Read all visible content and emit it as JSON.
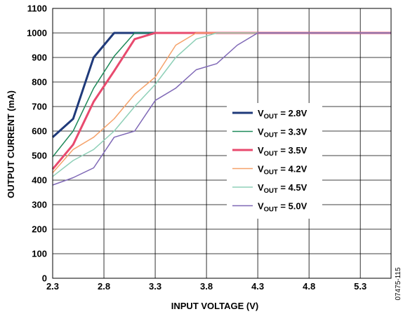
{
  "chart_data": {
    "type": "line",
    "xlabel": "INPUT VOLTAGE (V)",
    "ylabel": "OUTPUT CURRENT (mA)",
    "xlim": [
      2.3,
      5.6
    ],
    "ylim": [
      0,
      1100
    ],
    "x_ticks": [
      "2.3",
      "2.8",
      "3.3",
      "3.8",
      "4.3",
      "4.8",
      "5.3"
    ],
    "y_ticks": [
      "0",
      "100",
      "200",
      "300",
      "400",
      "500",
      "600",
      "700",
      "800",
      "900",
      "1000",
      "1100"
    ],
    "grid": true,
    "legend_position": "right",
    "figure_id": "07475-115",
    "series": [
      {
        "name_main": "V",
        "name_sub": "OUT",
        "name_value": " = 2.8V",
        "color": "#1f3a7a",
        "stroke_width": 3,
        "x": [
          2.3,
          2.5,
          2.7,
          2.9,
          3.3,
          5.6
        ],
        "y": [
          575,
          650,
          900,
          1000,
          1000,
          1000
        ]
      },
      {
        "name_main": "V",
        "name_sub": "OUT",
        "name_value": " = 3.3V",
        "color": "#1f8a5a",
        "stroke_width": 1.5,
        "x": [
          2.3,
          2.5,
          2.7,
          2.9,
          3.1,
          3.3,
          5.6
        ],
        "y": [
          495,
          600,
          775,
          905,
          1000,
          1000,
          1000
        ]
      },
      {
        "name_main": "V",
        "name_sub": "OUT",
        "name_value": " = 3.5V",
        "color": "#e84a6e",
        "stroke_width": 3,
        "x": [
          2.3,
          2.5,
          2.7,
          2.9,
          3.1,
          3.3,
          5.6
        ],
        "y": [
          445,
          545,
          720,
          845,
          975,
          1000,
          1000
        ]
      },
      {
        "name_main": "V",
        "name_sub": "OUT",
        "name_value": " = 4.2V",
        "color": "#f5a26a",
        "stroke_width": 1.5,
        "x": [
          2.3,
          2.5,
          2.7,
          2.9,
          3.1,
          3.3,
          3.5,
          3.7,
          3.9,
          5.6
        ],
        "y": [
          430,
          525,
          575,
          650,
          750,
          820,
          950,
          1000,
          1000,
          1000
        ]
      },
      {
        "name_main": "V",
        "name_sub": "OUT",
        "name_value": " = 4.5V",
        "color": "#8fd0b8",
        "stroke_width": 1.5,
        "x": [
          2.3,
          2.5,
          2.7,
          2.9,
          3.1,
          3.3,
          3.5,
          3.7,
          3.9,
          4.1,
          5.6
        ],
        "y": [
          415,
          480,
          525,
          600,
          700,
          790,
          900,
          975,
          1000,
          1000,
          1000
        ]
      },
      {
        "name_main": "V",
        "name_sub": "OUT",
        "name_value": " = 5.0V",
        "color": "#7f68b6",
        "stroke_width": 1.5,
        "x": [
          2.3,
          2.5,
          2.7,
          2.9,
          3.1,
          3.3,
          3.5,
          3.7,
          3.9,
          4.1,
          4.3,
          5.6
        ],
        "y": [
          380,
          410,
          450,
          575,
          600,
          725,
          775,
          850,
          875,
          950,
          1000,
          1000
        ]
      }
    ]
  }
}
